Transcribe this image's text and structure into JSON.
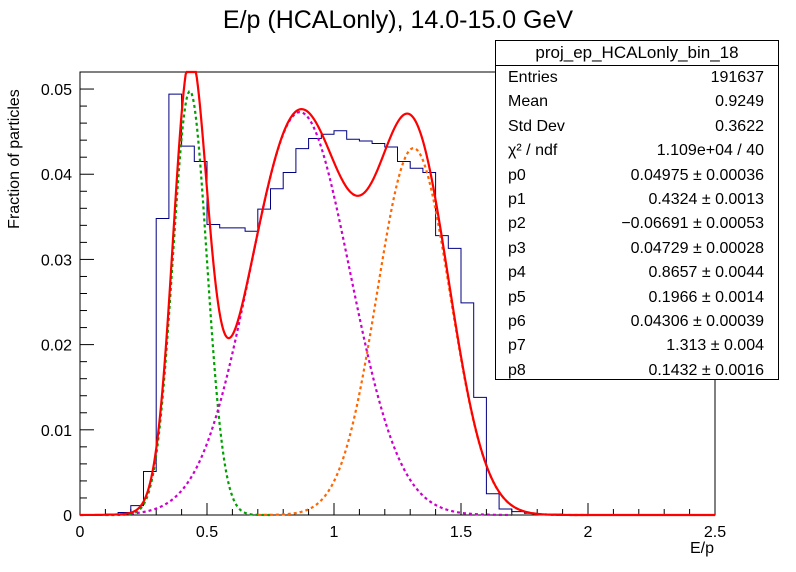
{
  "chart_data": {
    "type": "histogram",
    "title": "E/p (HCALonly), 14.0-15.0 GeV",
    "xlabel": "E/p",
    "ylabel": "Fraction of particles",
    "xlim": [
      0,
      2.5
    ],
    "ylim": [
      0,
      0.052
    ],
    "x_ticks": [
      "0",
      "0.5",
      "1",
      "1.5",
      "2",
      "2.5"
    ],
    "y_ticks": [
      "0",
      "0.01",
      "0.02",
      "0.03",
      "0.04",
      "0.05"
    ],
    "histogram": {
      "name": "proj_ep_HCALonly_bin_18",
      "color": "#000080",
      "bin_edges": [
        0.1,
        0.15,
        0.2,
        0.25,
        0.3,
        0.35,
        0.4,
        0.45,
        0.5,
        0.55,
        0.6,
        0.65,
        0.7,
        0.75,
        0.8,
        0.85,
        0.9,
        0.95,
        1.0,
        1.05,
        1.1,
        1.15,
        1.2,
        1.25,
        1.3,
        1.35,
        1.4,
        1.45,
        1.5,
        1.55,
        1.6,
        1.65,
        1.7,
        1.75,
        1.8,
        1.85,
        1.9
      ],
      "values": [
        0.0001,
        0.0003,
        0.0011,
        0.0051,
        0.0348,
        0.0494,
        0.0433,
        0.0415,
        0.0341,
        0.0337,
        0.0337,
        0.0333,
        0.0359,
        0.0383,
        0.0402,
        0.043,
        0.0442,
        0.0447,
        0.0451,
        0.0441,
        0.0439,
        0.0436,
        0.0432,
        0.0415,
        0.0407,
        0.0402,
        0.0328,
        0.0313,
        0.0249,
        0.0138,
        0.0025,
        0.0007,
        0.0004,
        0.0002,
        0.0001,
        0.0001
      ]
    },
    "fit": {
      "color": "#ff0000",
      "components": [
        {
          "amp": 0.04975,
          "mean": 0.4324,
          "sigma": 0.06691,
          "color": "#00a000"
        },
        {
          "amp": 0.04729,
          "mean": 0.8657,
          "sigma": 0.1966,
          "color": "#cc00cc"
        },
        {
          "amp": 0.04306,
          "mean": 1.313,
          "sigma": 0.1432,
          "color": "#ff6600"
        }
      ],
      "component_xranges": [
        [
          0.1,
          0.75
        ],
        [
          0.2,
          1.7
        ],
        [
          0.7,
          2.0
        ]
      ]
    },
    "stats": {
      "title": "proj_ep_HCALonly_bin_18",
      "rows": [
        {
          "label": "Entries",
          "value": "191637"
        },
        {
          "label": "Mean",
          "value": "0.9249"
        },
        {
          "label": "Std Dev",
          "value": "0.3622"
        },
        {
          "label": "χ² / ndf",
          "value": "1.109e+04 / 40"
        },
        {
          "label": "p0",
          "value": "0.04975 ± 0.00036"
        },
        {
          "label": "p1",
          "value": "0.4324 ± 0.0013"
        },
        {
          "label": "p2",
          "value": "−0.06691 ± 0.00053"
        },
        {
          "label": "p3",
          "value": "0.04729 ± 0.00028"
        },
        {
          "label": "p4",
          "value": "0.8657 ± 0.0044"
        },
        {
          "label": "p5",
          "value": "0.1966 ± 0.0014"
        },
        {
          "label": "p6",
          "value": "0.04306 ± 0.00039"
        },
        {
          "label": "p7",
          "value": "1.313 ± 0.004"
        },
        {
          "label": "p8",
          "value": "0.1432 ± 0.0016"
        }
      ]
    }
  }
}
